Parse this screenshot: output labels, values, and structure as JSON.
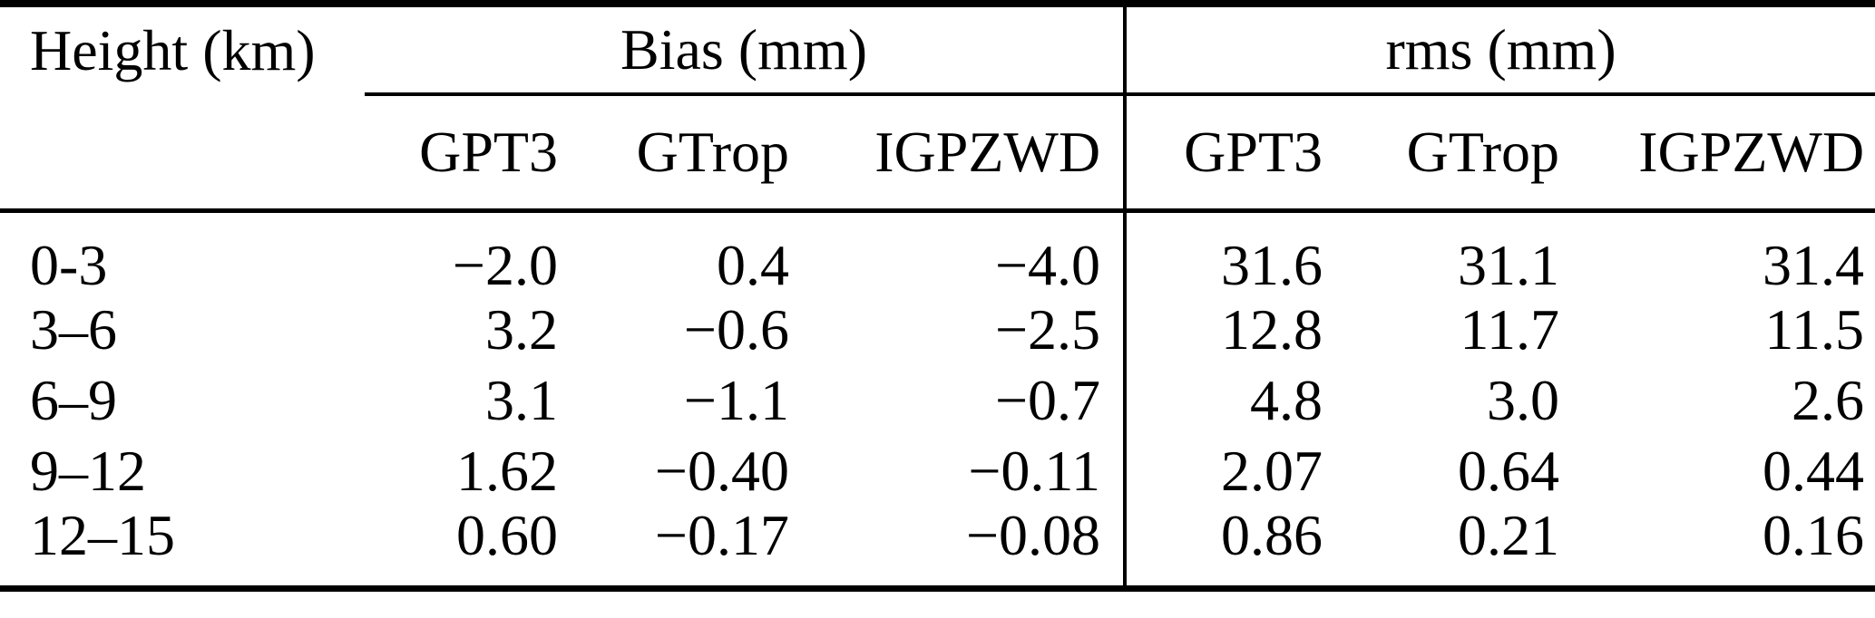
{
  "table": {
    "col_headers": {
      "height": "Height (km)",
      "bias_group": "Bias (mm)",
      "rms_group": "rms (mm)"
    },
    "sub_headers": {
      "bias": [
        "GPT3",
        "GTrop",
        "IGPZWD"
      ],
      "rms": [
        "GPT3",
        "GTrop",
        "IGPZWD"
      ]
    },
    "rows": [
      {
        "height": "0-3",
        "bias": [
          "−2.0",
          "0.4",
          "−4.0"
        ],
        "rms": [
          "31.6",
          "31.1",
          "31.4"
        ]
      },
      {
        "height": "3–6",
        "bias": [
          "3.2",
          "−0.6",
          "−2.5"
        ],
        "rms": [
          "12.8",
          "11.7",
          "11.5"
        ]
      },
      {
        "height": "6–9",
        "bias": [
          "3.1",
          "−1.1",
          "−0.7"
        ],
        "rms": [
          "4.8",
          "3.0",
          "2.6"
        ]
      },
      {
        "height": "9–12",
        "bias": [
          "1.62",
          "−0.40",
          "−0.11"
        ],
        "rms": [
          "2.07",
          "0.64",
          "0.44"
        ]
      },
      {
        "height": "12–15",
        "bias": [
          "0.60",
          "−0.17",
          "−0.08"
        ],
        "rms": [
          "0.86",
          "0.21",
          "0.16"
        ]
      }
    ]
  },
  "colors": {
    "text": "#000000",
    "background": "#ffffff",
    "rule": "#000000"
  }
}
